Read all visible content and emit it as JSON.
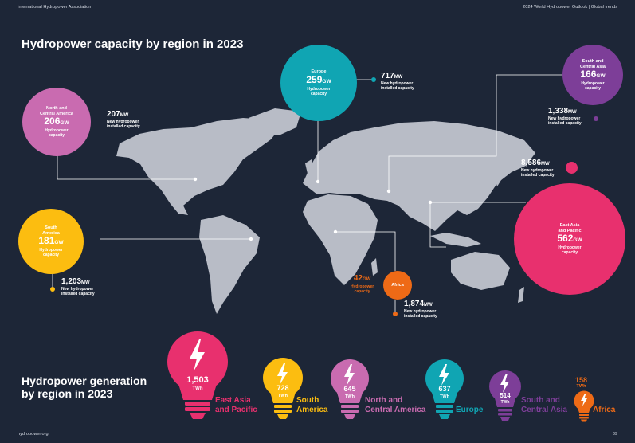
{
  "header": {
    "left": "International Hydropower Association",
    "right": "2024 World Hydropower Outlook | Global trends"
  },
  "capacity_title": "Hydropower capacity by region in 2023",
  "regions": {
    "nca": {
      "name_l1": "North and",
      "name_l2": "Central America",
      "value": "206",
      "unit": "GW",
      "desc_l1": "Hydropower",
      "desc_l2": "capacity",
      "new_value": "207",
      "new_unit": "MW",
      "new_l1": "New hydropower",
      "new_l2": "installed capacity",
      "color": "#c96bb0"
    },
    "europe": {
      "name": "Europe",
      "value": "259",
      "unit": "GW",
      "desc_l1": "Hydropower",
      "desc_l2": "capacity",
      "new_value": "717",
      "new_unit": "MW",
      "new_l1": "New hydropower",
      "new_l2": "installed capacity",
      "color": "#10a5b3"
    },
    "sca": {
      "name_l1": "South and",
      "name_l2": "Central Asia",
      "value": "166",
      "unit": "GW",
      "desc_l1": "Hydropower",
      "desc_l2": "capacity",
      "new_value": "1,338",
      "new_unit": "MW",
      "new_l1": "New hydropower",
      "new_l2": "installed capacity",
      "color": "#7d3e98"
    },
    "sa": {
      "name_l1": "South",
      "name_l2": "America",
      "value": "181",
      "unit": "GW",
      "desc_l1": "Hydropower",
      "desc_l2": "capacity",
      "new_value": "1,203",
      "new_unit": "MW",
      "new_l1": "New hydropower",
      "new_l2": "installed capacity",
      "color": "#fcbd10"
    },
    "eap": {
      "name_l1": "East Asia",
      "name_l2": "and Pacific",
      "value": "562",
      "unit": "GW",
      "desc_l1": "Hydropower",
      "desc_l2": "capacity",
      "new_value": "8,586",
      "new_unit": "MW",
      "new_l1": "New hydropower",
      "new_l2": "installed capacity",
      "color": "#e8306e"
    },
    "africa": {
      "name": "Africa",
      "value": "42",
      "unit": "GW",
      "desc_l1": "Hydropower",
      "desc_l2": "capacity",
      "new_value": "1,874",
      "new_unit": "MW",
      "new_l1": "New hydropower",
      "new_l2": "installed capacity",
      "color": "#ee6a16"
    }
  },
  "generation_title_l1": "Hydropower generation",
  "generation_title_l2": "by region in 2023",
  "generation": [
    {
      "value": "1,503",
      "unit": "TWh",
      "label_l1": "East Asia",
      "label_l2": "and Pacific",
      "color": "#e8306e"
    },
    {
      "value": "728",
      "unit": "TWh",
      "label_l1": "South",
      "label_l2": "America",
      "color": "#fcbd10"
    },
    {
      "value": "645",
      "unit": "TWh",
      "label_l1": "North and",
      "label_l2": "Central America",
      "color": "#c96bb0"
    },
    {
      "value": "637",
      "unit": "TWh",
      "label_l1": "Europe",
      "label_l2": "",
      "color": "#10a5b3"
    },
    {
      "value": "514",
      "unit": "TWh",
      "label_l1": "South and",
      "label_l2": "Central Asia",
      "color": "#7d3e98"
    },
    {
      "value": "158",
      "unit": "TWh",
      "label_l1": "Africa",
      "label_l2": "",
      "color": "#ee6a16"
    }
  ],
  "footer": {
    "left": "hydropower.org",
    "right": "39"
  }
}
